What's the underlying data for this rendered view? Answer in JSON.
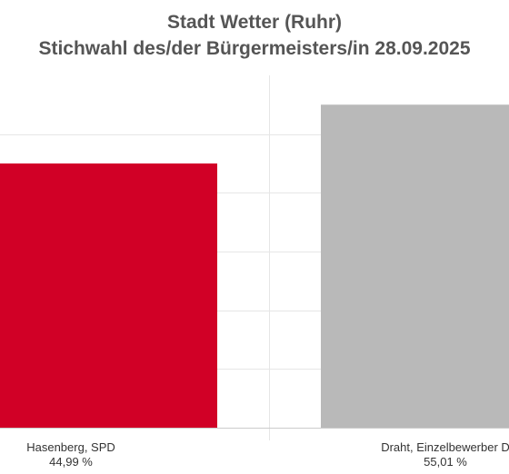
{
  "chart_data": {
    "type": "bar",
    "title": "Stadt Wetter (Ruhr)",
    "subtitle": "Stichwahl des/der Bürgermeisters/in 28.09.2025",
    "categories": [
      "Hasenberg, SPD",
      "Draht, Einzelbewerber D"
    ],
    "values": [
      44.99,
      55.01
    ],
    "value_labels": [
      "44,99 %",
      "55,01 %"
    ],
    "colors": [
      "#d10026",
      "#b9b9b9"
    ],
    "ylim": [
      0,
      60
    ],
    "grid": true,
    "legend": "none"
  }
}
